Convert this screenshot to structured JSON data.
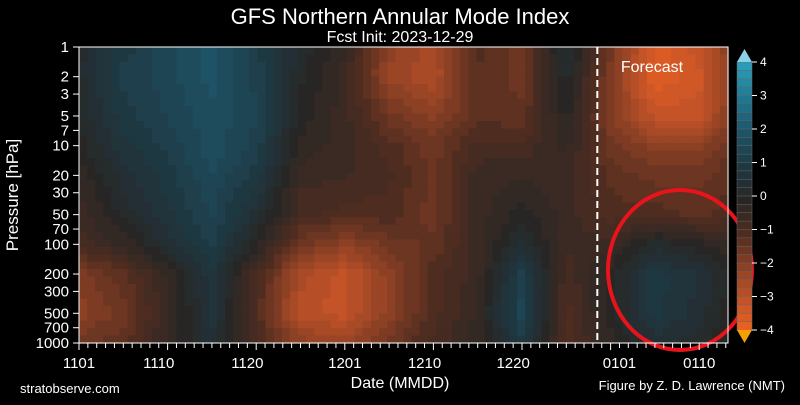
{
  "chart_data": {
    "type": "heatmap",
    "title": "GFS Northern Annular Mode Index",
    "subtitle": "Fcst Init: 2023-12-29",
    "xlabel": "Date (MMDD)",
    "ylabel": "Pressure [hPa]",
    "x_tick_labels": [
      "1101",
      "1110",
      "1120",
      "1201",
      "1210",
      "1220",
      "0101",
      "0110"
    ],
    "y_tick_values": [
      1,
      2,
      3,
      5,
      7,
      10,
      20,
      30,
      50,
      70,
      100,
      200,
      300,
      500,
      700,
      1000
    ],
    "y_scale": "log",
    "y_reversed": true,
    "colorbar_ticks": [
      4,
      3,
      2,
      1,
      0,
      -1,
      -2,
      -3,
      -4
    ],
    "colorbar_range": [
      -4,
      4
    ],
    "colors": {
      "negative": "#f06020",
      "neutral": "#2a2624",
      "positive": "#2a9cb8",
      "annotation_circle": "#e8141c"
    },
    "forecast_label": "Forecast",
    "forecast_start": "1229",
    "grid_dates": [
      "1101",
      "1106",
      "1111",
      "1116",
      "1121",
      "1126",
      "1201",
      "1206",
      "1211",
      "1216",
      "1221",
      "1226",
      "1231",
      "0105",
      "0110",
      "0113"
    ],
    "grid_pressures": [
      1,
      2,
      5,
      10,
      20,
      50,
      100,
      200,
      500,
      1000
    ],
    "values": [
      [
        0.3,
        0.3,
        0.2,
        0.0,
        -0.3,
        -0.5,
        -0.8,
        -1.8,
        -2.0,
        -1.5
      ],
      [
        1.0,
        1.2,
        1.0,
        0.8,
        0.5,
        0.2,
        -0.3,
        -1.2,
        -1.5,
        -1.2
      ],
      [
        1.5,
        1.5,
        1.4,
        1.2,
        1.0,
        0.8,
        0.5,
        -0.3,
        -0.5,
        -0.3
      ],
      [
        2.0,
        2.0,
        1.8,
        1.8,
        1.6,
        1.4,
        1.2,
        0.8,
        0.8,
        0.5
      ],
      [
        1.2,
        1.3,
        1.4,
        1.3,
        1.0,
        0.5,
        0.0,
        -0.8,
        -1.0,
        -0.8
      ],
      [
        0.3,
        0.2,
        0.0,
        -0.2,
        -0.5,
        -0.8,
        -1.5,
        -2.5,
        -2.8,
        -2.0
      ],
      [
        -0.3,
        -0.5,
        -0.5,
        -0.5,
        -0.6,
        -1.0,
        -2.0,
        -3.0,
        -3.0,
        -2.2
      ],
      [
        -2.0,
        -2.2,
        -1.5,
        -1.0,
        -0.8,
        -1.0,
        -1.5,
        -2.0,
        -2.0,
        -1.5
      ],
      [
        -2.5,
        -2.6,
        -2.0,
        -1.5,
        -1.5,
        -1.5,
        -1.3,
        -1.0,
        -1.0,
        -0.8
      ],
      [
        -1.0,
        -1.2,
        -1.2,
        -0.8,
        -0.5,
        -0.5,
        -0.5,
        -0.5,
        -0.3,
        -0.3
      ],
      [
        -1.5,
        -1.5,
        -1.3,
        -0.8,
        -0.4,
        0.0,
        0.5,
        1.2,
        1.5,
        1.0
      ],
      [
        0.5,
        0.3,
        0.0,
        -0.3,
        -0.5,
        -0.5,
        -0.6,
        -0.8,
        -1.0,
        -1.0
      ],
      [
        -1.5,
        -1.8,
        -1.8,
        -1.5,
        -1.2,
        -1.0,
        -0.5,
        0.0,
        0.0,
        -0.2
      ],
      [
        -3.5,
        -3.6,
        -3.0,
        -2.0,
        -1.5,
        -1.0,
        0.3,
        1.0,
        1.0,
        0.5
      ],
      [
        -3.0,
        -3.2,
        -3.0,
        -2.0,
        -1.5,
        -1.2,
        0.0,
        0.6,
        0.5,
        0.2
      ],
      [
        -2.0,
        -2.2,
        -2.0,
        -1.5,
        -1.2,
        -1.0,
        -0.3,
        0.2,
        0.0,
        0.0
      ]
    ]
  },
  "footer": {
    "left": "stratobserve.com",
    "right": "Figure by Z. D. Lawrence (NMT)"
  }
}
